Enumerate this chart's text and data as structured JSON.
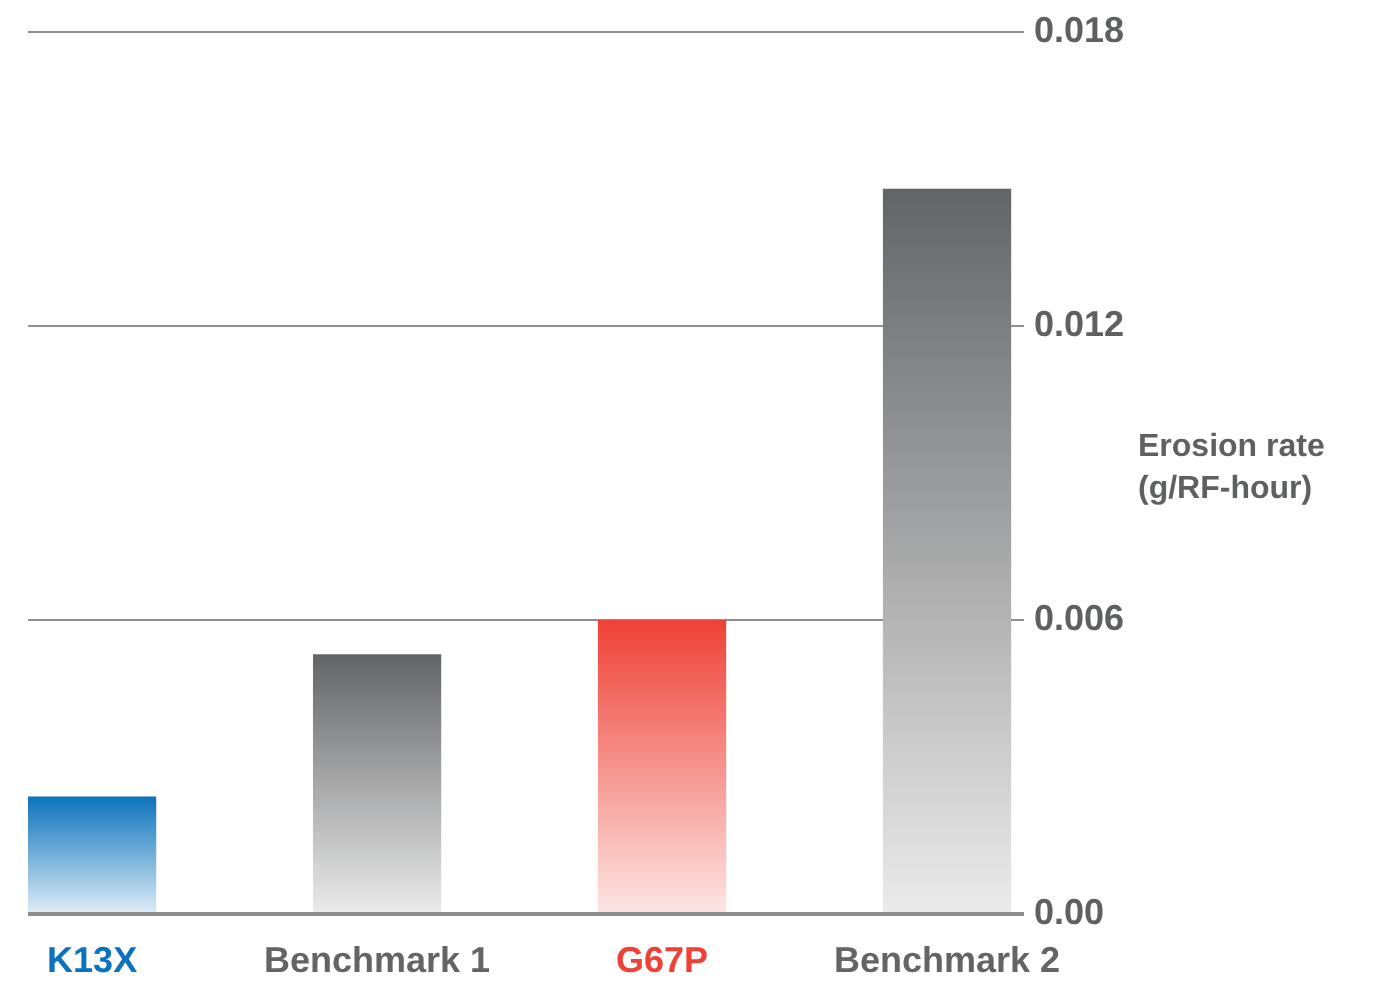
{
  "chart_data": {
    "type": "bar",
    "ylabel": "Erosion rate (g/RF-hour)",
    "categories": [
      "K13X",
      "Benchmark 1",
      "G67P",
      "Benchmark 2"
    ],
    "values": [
      0.0024,
      0.0053,
      0.006,
      0.0148
    ],
    "colors": [
      "#0b72bd",
      "#636466",
      "#ef4136",
      "#636466"
    ],
    "ylim": [
      0,
      0.018
    ],
    "yticks": [
      {
        "value": 0,
        "label": "0.00"
      },
      0.006,
      0.012,
      0.018
    ],
    "grid": "y",
    "legend": false
  }
}
